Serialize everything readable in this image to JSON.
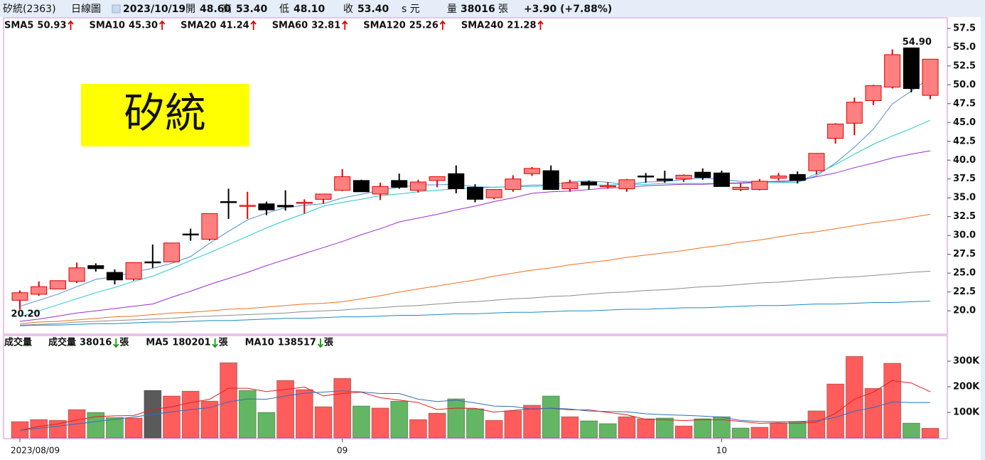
{
  "header": {
    "name": "矽統(2363)",
    "period": "日線圖",
    "date": "2023/10/19",
    "open_label": "開",
    "open": "48.60",
    "high_label": "高",
    "high": "53.40",
    "low_label": "低",
    "low": "48.10",
    "close_label": "收",
    "close": "53.40",
    "currency": "s 元",
    "volume_label": "量",
    "volume": "38016",
    "volume_unit": "張",
    "change": "+3.90 (+7.88%)"
  },
  "chart_data": [
    {
      "type": "candlestick",
      "stamp": "矽統",
      "up_color": "#ff8080",
      "up_edge": "#e00000",
      "down_color": "#000000",
      "open": [
        21.4,
        22.2,
        22.9,
        23.9,
        26.0,
        25.1,
        24.2,
        26.5,
        26.5,
        30.2,
        29.5,
        34.5,
        33.9,
        34.2,
        34.0,
        34.3,
        34.8,
        36.0,
        37.3,
        35.5,
        37.3,
        36.0,
        37.3,
        38.2,
        36.4,
        35.0,
        36.1,
        38.2,
        38.6,
        36.2,
        37.1,
        36.5,
        36.2,
        37.9,
        37.5,
        37.5,
        38.4,
        38.3,
        36.1,
        36.1,
        37.6,
        38.1,
        38.6,
        42.9,
        44.9,
        47.9,
        49.7,
        54.9,
        48.6
      ],
      "high": [
        22.7,
        23.9,
        24.0,
        26.4,
        26.3,
        25.5,
        26.4,
        28.8,
        29.0,
        30.9,
        32.9,
        36.2,
        35.8,
        34.5,
        36.0,
        34.8,
        35.5,
        38.8,
        37.4,
        37.0,
        38.2,
        37.4,
        37.8,
        39.3,
        36.8,
        36.1,
        38.0,
        39.1,
        39.3,
        37.4,
        37.3,
        37.1,
        37.5,
        38.3,
        38.6,
        38.1,
        38.9,
        38.6,
        36.9,
        37.5,
        38.3,
        38.5,
        40.9,
        44.9,
        48.3,
        50.0,
        54.7,
        54.9,
        53.4
      ],
      "low": [
        20.2,
        22.0,
        22.9,
        23.7,
        25.2,
        23.5,
        24.0,
        25.7,
        26.5,
        29.3,
        29.3,
        32.2,
        32.2,
        32.7,
        33.3,
        32.9,
        34.2,
        35.9,
        35.8,
        34.7,
        36.2,
        35.7,
        36.4,
        35.6,
        34.4,
        34.8,
        35.8,
        37.9,
        36.1,
        35.8,
        36.1,
        36.2,
        35.8,
        37.0,
        37.0,
        37.1,
        37.4,
        36.5,
        35.9,
        36.0,
        37.3,
        36.9,
        38.1,
        42.2,
        43.3,
        47.3,
        49.5,
        49.0,
        48.1
      ],
      "close": [
        22.4,
        23.2,
        24.0,
        25.7,
        25.6,
        24.1,
        26.4,
        26.4,
        29.0,
        30.1,
        32.9,
        34.4,
        34.0,
        33.4,
        33.8,
        34.4,
        35.5,
        37.8,
        35.8,
        36.5,
        36.4,
        37.1,
        37.8,
        36.2,
        34.8,
        36.1,
        37.5,
        38.9,
        36.1,
        37.0,
        36.7,
        36.6,
        37.4,
        37.8,
        37.3,
        38.0,
        37.7,
        36.5,
        36.4,
        37.2,
        37.9,
        37.3,
        40.9,
        44.8,
        47.7,
        49.9,
        54.0,
        49.5,
        53.4
      ],
      "lines": [
        {
          "name": "SMA5",
          "legend_value": "50.93",
          "color": "#4d8fd6",
          "values": [
            20.6,
            21.4,
            22.2,
            23.2,
            24.18,
            24.52,
            25.16,
            25.64,
            26.3,
            27.2,
            28.96,
            30.56,
            32.08,
            32.96,
            33.7,
            34.0,
            34.22,
            34.98,
            35.46,
            36.0,
            36.4,
            36.72,
            36.72,
            36.8,
            36.46,
            36.4,
            36.48,
            36.7,
            36.68,
            37.12,
            37.24,
            37.06,
            36.76,
            37.1,
            37.16,
            37.42,
            37.64,
            37.46,
            37.18,
            37.16,
            37.14,
            37.06,
            37.94,
            39.62,
            41.72,
            44.12,
            47.46,
            49.18,
            50.93
          ]
        },
        {
          "name": "SMA10",
          "legend_value": "45.30",
          "color": "#22c8c8",
          "values": [
            19.2,
            20.0,
            20.8,
            21.6,
            22.4,
            23.1,
            23.9,
            24.6,
            25.6,
            26.7,
            27.7,
            28.8,
            29.9,
            31.0,
            32.0,
            32.9,
            33.9,
            34.4,
            34.8,
            35.3,
            35.5,
            35.8,
            36.0,
            36.2,
            36.3,
            36.4,
            36.5,
            36.5,
            36.6,
            36.6,
            36.7,
            36.7,
            36.8,
            36.8,
            36.9,
            36.9,
            36.9,
            36.9,
            36.9,
            37.0,
            37.0,
            37.1,
            38.2,
            39.4,
            40.8,
            42.1,
            43.2,
            44.2,
            45.3
          ]
        },
        {
          "name": "SMA20",
          "legend_value": "41.24",
          "color": "#9a2ed0",
          "values": [
            18.6,
            18.9,
            19.3,
            19.7,
            20.0,
            20.3,
            20.6,
            20.9,
            21.8,
            22.6,
            23.5,
            24.3,
            25.1,
            26.0,
            26.8,
            27.6,
            28.4,
            29.2,
            30.1,
            30.9,
            31.8,
            32.3,
            32.8,
            33.4,
            33.9,
            34.5,
            35.0,
            35.6,
            35.8,
            35.9,
            36.1,
            36.3,
            36.4,
            36.6,
            36.7,
            36.8,
            36.8,
            36.9,
            37.0,
            37.1,
            37.2,
            37.3,
            37.8,
            38.3,
            39.0,
            39.6,
            40.3,
            40.8,
            41.24
          ]
        },
        {
          "name": "SMA60",
          "legend_value": "32.81",
          "color": "#f07020",
          "values": [
            18.3,
            18.5,
            18.6,
            18.8,
            19.0,
            19.2,
            19.3,
            19.5,
            19.7,
            19.8,
            20.0,
            20.2,
            20.3,
            20.5,
            20.7,
            20.9,
            21.0,
            21.2,
            21.6,
            22.0,
            22.5,
            22.9,
            23.3,
            23.7,
            24.1,
            24.6,
            25.0,
            25.4,
            25.7,
            26.1,
            26.4,
            26.7,
            27.1,
            27.4,
            27.7,
            28.0,
            28.4,
            28.7,
            29.1,
            29.4,
            29.8,
            30.2,
            30.5,
            30.9,
            31.3,
            31.7,
            32.0,
            32.4,
            32.81
          ]
        },
        {
          "name": "SMA120",
          "legend_value": "25.26",
          "color": "#8c8c8c",
          "values": [
            18.1,
            18.2,
            18.3,
            18.5,
            18.6,
            18.7,
            18.8,
            18.9,
            19.0,
            19.2,
            19.3,
            19.4,
            19.5,
            19.6,
            19.7,
            19.9,
            20.0,
            20.1,
            20.3,
            20.4,
            20.6,
            20.7,
            20.9,
            21.1,
            21.2,
            21.4,
            21.6,
            21.7,
            21.9,
            22.0,
            22.2,
            22.4,
            22.5,
            22.7,
            22.8,
            23.0,
            23.2,
            23.3,
            23.5,
            23.7,
            23.8,
            24.0,
            24.2,
            24.4,
            24.5,
            24.7,
            24.9,
            25.1,
            25.26
          ]
        },
        {
          "name": "SMA240",
          "legend_value": "21.28",
          "color": "#1a8ac8",
          "values": [
            18.0,
            18.1,
            18.1,
            18.2,
            18.3,
            18.3,
            18.4,
            18.5,
            18.5,
            18.6,
            18.7,
            18.7,
            18.8,
            18.9,
            19.0,
            19.0,
            19.1,
            19.2,
            19.2,
            19.3,
            19.4,
            19.4,
            19.5,
            19.6,
            19.6,
            19.7,
            19.8,
            19.8,
            19.9,
            20.0,
            20.0,
            20.1,
            20.2,
            20.2,
            20.3,
            20.4,
            20.4,
            20.5,
            20.6,
            20.7,
            20.7,
            20.8,
            20.9,
            20.9,
            21.0,
            21.1,
            21.1,
            21.2,
            21.28
          ]
        }
      ],
      "annotations": [
        {
          "label": "20.20",
          "value": 20.2
        },
        {
          "label": "54.90",
          "value": 54.9
        }
      ],
      "ylim": [
        16.9,
        58.9
      ],
      "yticks": [
        {
          "value": 20,
          "label": "20.0"
        },
        22.5,
        {
          "value": 25,
          "label": "25.0"
        },
        27.5,
        {
          "value": 30,
          "label": "30.0"
        },
        32.5,
        {
          "value": 35,
          "label": "35.0"
        },
        37.5,
        {
          "value": 40,
          "label": "40.0"
        },
        42.5,
        {
          "value": 45,
          "label": "45.0"
        },
        47.5,
        {
          "value": 50,
          "label": "50.0"
        },
        52.5,
        {
          "value": 55,
          "label": "55.0"
        },
        57.5
      ]
    },
    {
      "type": "volume",
      "title": "成交量",
      "categories": [
        "2023/08/09",
        null,
        null,
        null,
        null,
        null,
        null,
        null,
        null,
        null,
        null,
        null,
        null,
        null,
        null,
        null,
        null,
        "09",
        null,
        null,
        null,
        null,
        null,
        null,
        null,
        null,
        null,
        null,
        null,
        null,
        null,
        null,
        null,
        null,
        null,
        null,
        null,
        "10",
        null,
        null,
        null,
        null,
        null,
        null,
        null,
        null,
        null,
        null,
        null
      ],
      "series": [
        {
          "name": "成交量",
          "legend_value": "38016",
          "unit": "張",
          "values": [
            64000,
            72000,
            69000,
            111000,
            100000,
            80000,
            78000,
            186000,
            164000,
            183000,
            144000,
            294000,
            186000,
            100000,
            225000,
            189000,
            122000,
            233000,
            125000,
            117000,
            144000,
            72000,
            97000,
            153000,
            114000,
            69000,
            106000,
            128000,
            164000,
            83000,
            67000,
            56000,
            83000,
            75000,
            78000,
            47000,
            75000,
            83000,
            39000,
            42000,
            58000,
            64000,
            106000,
            211000,
            319000,
            194000,
            292000,
            58000,
            38016
          ]
        }
      ],
      "colors": {
        "up": "#ff5c5c",
        "down": "#63b663",
        "flat": "#5a5a5a"
      },
      "lines": [
        {
          "name": "MA5",
          "legend_value": "180201",
          "unit": "張",
          "color": "#e02020",
          "values": [
            30000,
            45000,
            55000,
            70000,
            83200,
            86400,
            87600,
            111000,
            121600,
            138200,
            151000,
            194200,
            194200,
            181400,
            189800,
            198800,
            164400,
            173800,
            178800,
            157200,
            148200,
            138200,
            111000,
            116600,
            116000,
            101000,
            107800,
            114000,
            116200,
            110000,
            109600,
            99600,
            90600,
            72800,
            71800,
            67800,
            71600,
            71600,
            64400,
            57200,
            59400,
            57200,
            61800,
            96200,
            151600,
            178800,
            224400,
            214800,
            180201
          ]
        },
        {
          "name": "MA10",
          "legend_value": "138517",
          "unit": "張",
          "color": "#2f6fb8",
          "values": [
            30000,
            38000,
            46000,
            55000,
            64000,
            73000,
            82000,
            92000,
            102000,
            110700,
            118700,
            140900,
            152600,
            151500,
            164000,
            174900,
            179300,
            184000,
            180100,
            173500,
            173500,
            151300,
            142400,
            147700,
            136600,
            124600,
            123000,
            112500,
            116400,
            113000,
            105300,
            103700,
            102300,
            94500,
            90900,
            88700,
            85600,
            81100,
            68600,
            64500,
            63600,
            64400,
            66700,
            80300,
            104400,
            119100,
            140800,
            138300,
            138517
          ]
        }
      ],
      "ylim": [
        0,
        400000
      ],
      "yticks": [
        {
          "value": 100000,
          "label": "100K"
        },
        {
          "value": 200000,
          "label": "200K"
        },
        {
          "value": 300000,
          "label": "300K"
        }
      ]
    }
  ]
}
